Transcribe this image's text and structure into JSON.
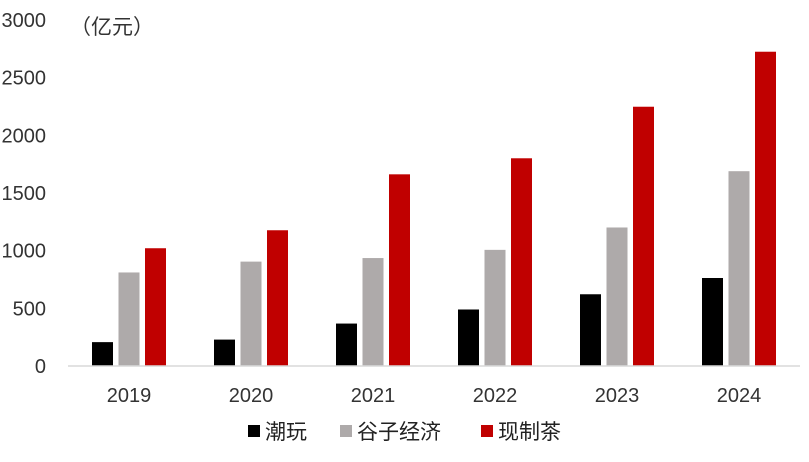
{
  "chart_data": {
    "type": "bar",
    "unit_label": "（亿元）",
    "categories": [
      "2019",
      "2020",
      "2021",
      "2022",
      "2023",
      "2024"
    ],
    "series": [
      {
        "name": "潮玩",
        "color": "#000000",
        "values": [
          207,
          229,
          368,
          490,
          622,
          763
        ]
      },
      {
        "name": "谷子经济",
        "color": "#aeaaaa",
        "values": [
          811,
          905,
          936,
          1007,
          1201,
          1689
        ]
      },
      {
        "name": "现制茶",
        "color": "#c00000",
        "values": [
          1021,
          1177,
          1662,
          1801,
          2248,
          2725
        ]
      }
    ],
    "ylim": [
      0,
      3000
    ],
    "yticks": [
      0,
      500,
      1000,
      1500,
      2000,
      2500,
      3000
    ],
    "grid": false,
    "legend_position": "bottom"
  }
}
